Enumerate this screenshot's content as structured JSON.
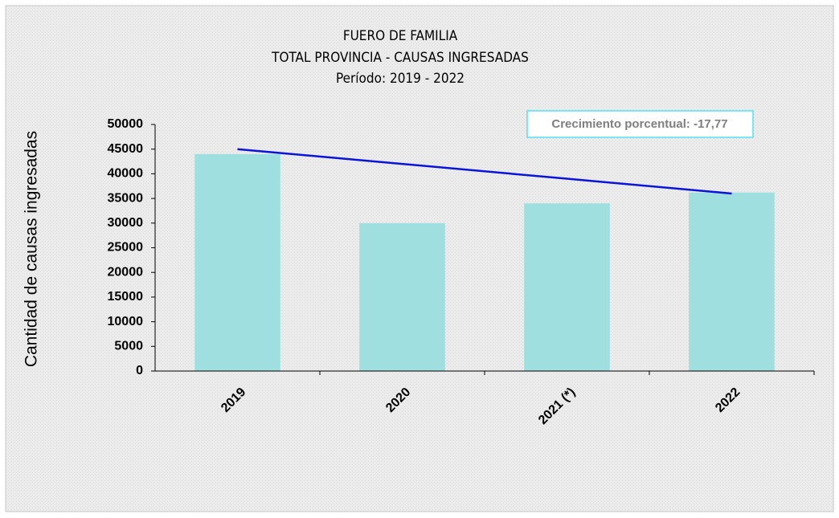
{
  "chart_data": {
    "type": "bar",
    "title_lines": [
      "FUERO DE FAMILIA",
      "TOTAL PROVINCIA - CAUSAS INGRESADAS",
      "Período: 2019 - 2022"
    ],
    "ylabel": "Cantidad de causas ingresadas",
    "annotation": "Crecimiento porcentual: -17,77",
    "categories": [
      "2019",
      "2020",
      "2021 (*)",
      "2022"
    ],
    "series": [
      {
        "type": "bar",
        "color": "#a0dfe0",
        "values": [
          44000,
          30000,
          34000,
          36200
        ]
      },
      {
        "type": "line",
        "color": "#0a14d8",
        "values": [
          45000,
          42000,
          39000,
          36000
        ]
      }
    ],
    "ylim": [
      0,
      50000
    ],
    "yticks": [
      0,
      5000,
      10000,
      15000,
      20000,
      25000,
      30000,
      35000,
      40000,
      45000,
      50000
    ],
    "grid": false
  }
}
